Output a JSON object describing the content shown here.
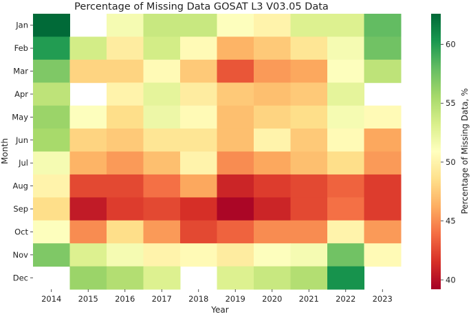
{
  "chart_data": {
    "type": "heatmap",
    "title": "Percentage of Missing Data GOSAT L3 V03.05 Data",
    "xlabel": "Year",
    "ylabel": "Month",
    "x_categories": [
      "2014",
      "2015",
      "2016",
      "2017",
      "2018",
      "2019",
      "2020",
      "2021",
      "2022",
      "2023"
    ],
    "y_categories": [
      "Jan",
      "Feb",
      "Mar",
      "Apr",
      "May",
      "Jun",
      "Jul",
      "Aug",
      "Sep",
      "Oct",
      "Nov",
      "Dec"
    ],
    "values": [
      [
        62.5,
        null,
        51.5,
        54.0,
        54.0,
        51.0,
        50.0,
        53.0,
        53.0,
        58.0
      ],
      [
        60.0,
        53.5,
        49.5,
        53.5,
        50.5,
        46.5,
        47.5,
        49.0,
        51.5,
        57.5
      ],
      [
        57.0,
        48.0,
        48.0,
        50.5,
        47.5,
        43.0,
        45.5,
        46.0,
        51.0,
        54.5
      ],
      [
        54.5,
        null,
        50.0,
        52.5,
        49.5,
        47.5,
        47.0,
        47.5,
        52.5,
        null
      ],
      [
        56.0,
        51.0,
        48.5,
        52.0,
        50.5,
        47.0,
        48.0,
        48.5,
        51.5,
        50.5
      ],
      [
        55.5,
        48.0,
        47.5,
        49.0,
        49.0,
        47.0,
        50.0,
        47.5,
        50.5,
        46.0
      ],
      [
        51.5,
        46.5,
        45.5,
        47.0,
        50.0,
        45.0,
        46.0,
        47.0,
        48.5,
        45.5
      ],
      [
        50.0,
        42.5,
        42.5,
        44.0,
        46.0,
        41.0,
        42.0,
        42.5,
        43.5,
        42.0
      ],
      [
        48.5,
        40.5,
        42.0,
        42.5,
        41.5,
        39.5,
        41.0,
        42.5,
        44.0,
        42.0
      ],
      [
        51.0,
        45.0,
        48.5,
        45.5,
        42.5,
        43.5,
        45.0,
        45.0,
        50.0,
        45.5
      ],
      [
        57.0,
        53.0,
        51.5,
        50.0,
        50.5,
        49.5,
        51.0,
        51.5,
        57.5,
        50.5
      ],
      [
        null,
        56.0,
        55.0,
        53.0,
        null,
        53.0,
        54.0,
        55.0,
        60.5,
        null
      ]
    ],
    "colorbar": {
      "label": "Percentage of Missing Data, %",
      "vmin": 39.2,
      "vmax": 62.6,
      "ticks": [
        40,
        45,
        50,
        55,
        60
      ],
      "colormap": "RdYlGn"
    }
  }
}
